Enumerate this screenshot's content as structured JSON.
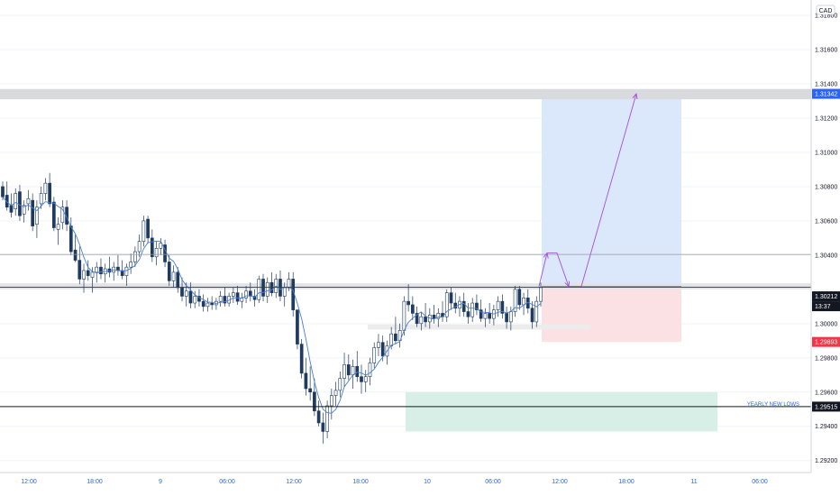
{
  "currency": "CAD",
  "price_labels": [
    "1.31800",
    "1.31600",
    "1.31400",
    "1.31200",
    "1.31000",
    "1.30800",
    "1.30600",
    "1.30400",
    "1.30000",
    "1.29800",
    "1.29600",
    "1.29400",
    "1.29200"
  ],
  "time_labels": [
    "12:00",
    "18:00",
    "9",
    "06:00",
    "12:00",
    "18:00",
    "10",
    "06:00",
    "12:00",
    "18:00",
    "11",
    "06:00"
  ],
  "tags": {
    "target": "1.31342",
    "level_a": "1.30217",
    "current_price": "1.30212",
    "countdown": "13:37",
    "stop": "1.29893",
    "yearly_low": "1.29515"
  },
  "annotation_yearly": "YEARLY NEW LOWS",
  "colors": {
    "accent": "#2962ff",
    "candle": "#1e3a5f",
    "moving_average": "#4a7fd4",
    "target_zone": "#dbe8fb",
    "stop_zone": "#fbe1e3",
    "demand_zone": "#d7efe6",
    "projection_arrow": "#a64fd9",
    "stop_tag": "#f23645",
    "price_tag": "#131722"
  },
  "chart_data": {
    "type": "candlestick",
    "symbol_currency": "CAD",
    "ylim": [
      1.2913,
      1.3189
    ],
    "levels": [
      {
        "price": 1.31342,
        "label": "1.31342",
        "style": "supply zone"
      },
      {
        "price": 1.30404,
        "style": "resistance line"
      },
      {
        "price": 1.30217,
        "label": "1.30217",
        "style": "zone"
      },
      {
        "price": 1.30212,
        "label": "1.30212",
        "style": "current price"
      },
      {
        "price": 1.29515,
        "label": "1.29515",
        "style": "yearly low line"
      }
    ],
    "position": {
      "entry": 1.30217,
      "target": 1.31342,
      "stop": 1.29893
    },
    "demand_zone": [
      1.2937,
      1.296
    ],
    "candles": [
      [
        1.308,
        1.3083,
        1.3072,
        1.3074
      ],
      [
        1.3075,
        1.3083,
        1.3066,
        1.3068
      ],
      [
        1.3069,
        1.3076,
        1.3062,
        1.3065
      ],
      [
        1.3067,
        1.3079,
        1.3063,
        1.3076
      ],
      [
        1.3077,
        1.3081,
        1.306,
        1.3063
      ],
      [
        1.3064,
        1.3072,
        1.3059,
        1.3069
      ],
      [
        1.307,
        1.3078,
        1.3066,
        1.3073
      ],
      [
        1.3072,
        1.3076,
        1.3054,
        1.3057
      ],
      [
        1.3058,
        1.3072,
        1.305,
        1.3068
      ],
      [
        1.307,
        1.308,
        1.3067,
        1.3076
      ],
      [
        1.3076,
        1.3085,
        1.3072,
        1.3082
      ],
      [
        1.3082,
        1.3088,
        1.3068,
        1.307
      ],
      [
        1.3071,
        1.3074,
        1.3054,
        1.3056
      ],
      [
        1.3055,
        1.3062,
        1.3046,
        1.3058
      ],
      [
        1.3059,
        1.3072,
        1.3055,
        1.3068
      ],
      [
        1.3068,
        1.3072,
        1.3054,
        1.3058
      ],
      [
        1.3057,
        1.3062,
        1.304,
        1.3042
      ],
      [
        1.3043,
        1.3052,
        1.3036,
        1.3037
      ],
      [
        1.3037,
        1.3045,
        1.3023,
        1.3026
      ],
      [
        1.3026,
        1.3035,
        1.3018,
        1.3031
      ],
      [
        1.3031,
        1.3037,
        1.3025,
        1.3028
      ],
      [
        1.3027,
        1.3033,
        1.3018,
        1.303
      ],
      [
        1.303,
        1.3036,
        1.3024,
        1.3033
      ],
      [
        1.3033,
        1.3038,
        1.3026,
        1.3029
      ],
      [
        1.3029,
        1.3035,
        1.3024,
        1.3032
      ],
      [
        1.3032,
        1.3039,
        1.3027,
        1.303
      ],
      [
        1.303,
        1.3036,
        1.3025,
        1.3033
      ],
      [
        1.3033,
        1.304,
        1.3028,
        1.3031
      ],
      [
        1.3031,
        1.3037,
        1.3026,
        1.3028
      ],
      [
        1.3028,
        1.3035,
        1.3022,
        1.3033
      ],
      [
        1.3033,
        1.3041,
        1.3029,
        1.3036
      ],
      [
        1.3036,
        1.3045,
        1.3033,
        1.3042
      ],
      [
        1.3042,
        1.3052,
        1.3039,
        1.3048
      ],
      [
        1.3048,
        1.3063,
        1.3045,
        1.306
      ],
      [
        1.3061,
        1.3063,
        1.3047,
        1.305
      ],
      [
        1.305,
        1.3055,
        1.3036,
        1.3039
      ],
      [
        1.3039,
        1.3048,
        1.3034,
        1.3044
      ],
      [
        1.3044,
        1.305,
        1.304,
        1.3047
      ],
      [
        1.3046,
        1.3049,
        1.3033,
        1.3036
      ],
      [
        1.3036,
        1.304,
        1.3022,
        1.3025
      ],
      [
        1.3025,
        1.3034,
        1.3021,
        1.303
      ],
      [
        1.303,
        1.3033,
        1.3018,
        1.3021
      ],
      [
        1.3021,
        1.3027,
        1.3013,
        1.3016
      ],
      [
        1.3016,
        1.3024,
        1.301,
        1.3019
      ],
      [
        1.3019,
        1.3024,
        1.3009,
        1.3012
      ],
      [
        1.3012,
        1.3019,
        1.3009,
        1.3016
      ],
      [
        1.3016,
        1.302,
        1.301,
        1.3013
      ],
      [
        1.3013,
        1.3017,
        1.3007,
        1.301
      ],
      [
        1.301,
        1.3015,
        1.3007,
        1.3012
      ],
      [
        1.3012,
        1.3016,
        1.3008,
        1.3011
      ],
      [
        1.3011,
        1.3015,
        1.3008,
        1.3013
      ],
      [
        1.3013,
        1.3019,
        1.301,
        1.3016
      ],
      [
        1.3016,
        1.3021,
        1.301,
        1.3012
      ],
      [
        1.3012,
        1.3018,
        1.301,
        1.3016
      ],
      [
        1.3016,
        1.3021,
        1.3012,
        1.3018
      ],
      [
        1.3018,
        1.3022,
        1.3011,
        1.3013
      ],
      [
        1.3013,
        1.3018,
        1.3009,
        1.3015
      ],
      [
        1.3015,
        1.3022,
        1.3012,
        1.3019
      ],
      [
        1.3019,
        1.3024,
        1.3013,
        1.3016
      ],
      [
        1.3016,
        1.302,
        1.301,
        1.3014
      ],
      [
        1.3014,
        1.3028,
        1.3012,
        1.3026
      ],
      [
        1.3026,
        1.3029,
        1.3013,
        1.3016
      ],
      [
        1.3016,
        1.3027,
        1.3012,
        1.3024
      ],
      [
        1.3024,
        1.303,
        1.3016,
        1.3018
      ],
      [
        1.3018,
        1.3029,
        1.3015,
        1.3026
      ],
      [
        1.3026,
        1.3031,
        1.3013,
        1.3016
      ],
      [
        1.3016,
        1.3024,
        1.301,
        1.3021
      ],
      [
        1.3021,
        1.303,
        1.3019,
        1.3026
      ],
      [
        1.3026,
        1.303,
        1.3004,
        1.3008
      ],
      [
        1.3008,
        1.3007,
        1.2985,
        1.2988
      ],
      [
        1.2988,
        1.2991,
        1.2968,
        1.2971
      ],
      [
        1.2971,
        1.298,
        1.2958,
        1.2962
      ],
      [
        1.2962,
        1.2975,
        1.2955,
        1.296
      ],
      [
        1.296,
        1.2968,
        1.2946,
        1.2949
      ],
      [
        1.2949,
        1.2955,
        1.294,
        1.2942
      ],
      [
        1.2942,
        1.2948,
        1.293,
        1.2937
      ],
      [
        1.2937,
        1.2955,
        1.2933,
        1.2952
      ],
      [
        1.2952,
        1.2962,
        1.2944,
        1.2958
      ],
      [
        1.2958,
        1.2966,
        1.2952,
        1.2961
      ],
      [
        1.2961,
        1.2972,
        1.2957,
        1.2968
      ],
      [
        1.2968,
        1.2983,
        1.2963,
        1.2976
      ],
      [
        1.2976,
        1.2982,
        1.2967,
        1.297
      ],
      [
        1.297,
        1.2979,
        1.2962,
        1.2975
      ],
      [
        1.2975,
        1.2984,
        1.2966,
        1.2969
      ],
      [
        1.2969,
        1.2976,
        1.2959,
        1.2966
      ],
      [
        1.2966,
        1.2973,
        1.296,
        1.2969
      ],
      [
        1.2969,
        1.298,
        1.2964,
        1.2977
      ],
      [
        1.2977,
        1.2989,
        1.2974,
        1.2986
      ],
      [
        1.2986,
        1.2994,
        1.2981,
        1.2989
      ],
      [
        1.2989,
        1.2993,
        1.2978,
        1.2981
      ],
      [
        1.2981,
        1.299,
        1.2976,
        1.2987
      ],
      [
        1.2987,
        1.2998,
        1.2985,
        1.2994
      ],
      [
        1.2994,
        1.3004,
        1.2988,
        1.299
      ],
      [
        1.299,
        1.3,
        1.2986,
        1.2996
      ],
      [
        1.2996,
        1.3016,
        1.2993,
        1.3013
      ],
      [
        1.3013,
        1.3023,
        1.3007,
        1.3011
      ],
      [
        1.3011,
        1.3016,
        1.3002,
        1.3006
      ],
      [
        1.3006,
        1.301,
        1.2998,
        1.3
      ],
      [
        1.3,
        1.3007,
        1.2996,
        1.3004
      ],
      [
        1.3004,
        1.3012,
        1.2998,
        1.3001
      ],
      [
        1.3001,
        1.3009,
        1.2997,
        1.3005
      ],
      [
        1.3005,
        1.3011,
        1.3,
        1.3003
      ],
      [
        1.3003,
        1.3009,
        1.2998,
        1.3006
      ],
      [
        1.3006,
        1.3013,
        1.3001,
        1.3004
      ],
      [
        1.3004,
        1.302,
        1.3001,
        1.3018
      ],
      [
        1.3018,
        1.3021,
        1.3008,
        1.3012
      ],
      [
        1.3012,
        1.3018,
        1.3006,
        1.3009
      ],
      [
        1.3009,
        1.3016,
        1.3004,
        1.3013
      ],
      [
        1.3013,
        1.3018,
        1.3004,
        1.3007
      ],
      [
        1.3007,
        1.3012,
        1.3,
        1.3004
      ],
      [
        1.3004,
        1.3015,
        1.3001,
        1.3012
      ],
      [
        1.3012,
        1.3017,
        1.3005,
        1.3008
      ],
      [
        1.3008,
        1.3014,
        1.3001,
        1.3003
      ],
      [
        1.3003,
        1.3009,
        1.2998,
        1.3006
      ],
      [
        1.3006,
        1.3012,
        1.3,
        1.3003
      ],
      [
        1.3003,
        1.3011,
        1.2999,
        1.3008
      ],
      [
        1.3008,
        1.3016,
        1.3004,
        1.3013
      ],
      [
        1.3013,
        1.3017,
        1.3003,
        1.3006
      ],
      [
        1.3006,
        1.301,
        1.2997,
        1.3001
      ],
      [
        1.3001,
        1.301,
        1.2996,
        1.3007
      ],
      [
        1.3007,
        1.3022,
        1.3004,
        1.302
      ],
      [
        1.302,
        1.3022,
        1.3008,
        1.3011
      ],
      [
        1.3011,
        1.3018,
        1.3005,
        1.3015
      ],
      [
        1.3015,
        1.302,
        1.3006,
        1.3009
      ],
      [
        1.3009,
        1.3013,
        1.2997,
        1.3001
      ],
      [
        1.3001,
        1.3016,
        1.2998,
        1.3013
      ],
      [
        1.3013,
        1.3024,
        1.301,
        1.3021
      ]
    ]
  }
}
